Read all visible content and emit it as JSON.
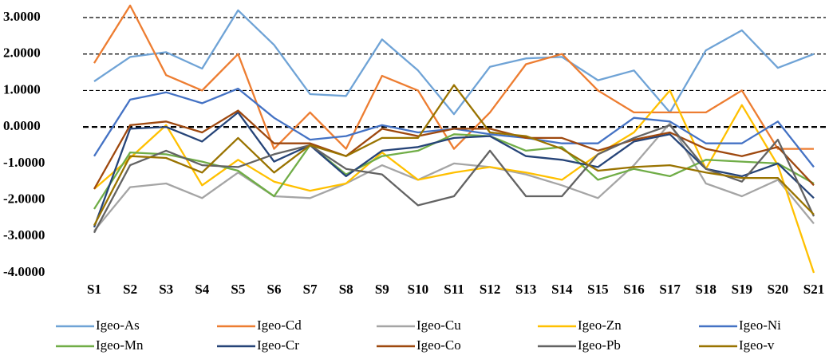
{
  "chart_data": {
    "type": "line",
    "categories": [
      "S1",
      "S2",
      "S3",
      "S4",
      "S5",
      "S6",
      "S7",
      "S8",
      "S9",
      "S10",
      "S11",
      "S12",
      "S13",
      "S14",
      "S15",
      "S16",
      "S17",
      "S18",
      "S19",
      "S20",
      "S21"
    ],
    "ylim": [
      -4,
      3
    ],
    "yticks": [
      {
        "value": -4,
        "label": "-4.0000"
      },
      {
        "value": -3,
        "label": "-3.0000"
      },
      {
        "value": -2,
        "label": "-2.0000"
      },
      {
        "value": -1,
        "label": "-1.0000"
      },
      {
        "value": 0,
        "label": "0.0000"
      },
      {
        "value": 1,
        "label": "1.0000"
      },
      {
        "value": 2,
        "label": "2.0000"
      },
      {
        "value": 3,
        "label": "3.0000"
      }
    ],
    "grid": true,
    "legend": "bottom",
    "series": [
      {
        "name": "Igeo-As",
        "color": "#6fa3d6",
        "values": [
          1.25,
          1.92,
          2.05,
          1.6,
          3.2,
          2.25,
          0.9,
          0.85,
          2.4,
          1.55,
          0.35,
          1.65,
          1.88,
          1.92,
          1.28,
          1.55,
          0.4,
          2.1,
          2.65,
          1.62,
          2.0
        ]
      },
      {
        "name": "Igeo-Cd",
        "color": "#ed7d31",
        "values": [
          1.75,
          3.33,
          1.42,
          1.0,
          2.0,
          -0.6,
          0.4,
          -0.6,
          1.4,
          1.0,
          -0.6,
          0.4,
          1.72,
          2.0,
          1.0,
          0.4,
          0.4,
          0.4,
          1.0,
          -0.6,
          -0.6
        ]
      },
      {
        "name": "Igeo-Cu",
        "color": "#a5a5a5",
        "values": [
          -2.85,
          -1.65,
          -1.55,
          -1.95,
          -1.25,
          -1.9,
          -1.95,
          -1.55,
          -1.05,
          -1.45,
          -1.0,
          -1.1,
          -1.3,
          -1.6,
          -1.95,
          -1.05,
          0.1,
          -1.55,
          -1.9,
          -1.45,
          -2.65
        ]
      },
      {
        "name": "Igeo-Zn",
        "color": "#ffc000",
        "values": [
          -1.7,
          -0.85,
          0.05,
          -1.6,
          -0.9,
          -1.5,
          -1.75,
          -1.55,
          -0.7,
          -1.45,
          -1.25,
          -1.1,
          -1.25,
          -1.45,
          -0.75,
          -0.15,
          1.0,
          -1.15,
          0.6,
          -1.05,
          -4.0
        ]
      },
      {
        "name": "Igeo-Ni",
        "color": "#4472c4",
        "values": [
          -0.8,
          0.75,
          0.95,
          0.65,
          1.05,
          0.25,
          -0.35,
          -0.25,
          0.05,
          -0.15,
          -0.05,
          -0.2,
          -0.3,
          -0.45,
          -0.45,
          0.25,
          0.15,
          -0.45,
          -0.45,
          0.15,
          -1.1
        ]
      },
      {
        "name": "Igeo-Mn",
        "color": "#70ad47",
        "values": [
          -2.25,
          -0.7,
          -0.75,
          -0.95,
          -1.2,
          -1.9,
          -0.5,
          -1.3,
          -0.8,
          -0.65,
          -0.2,
          -0.25,
          -0.65,
          -0.55,
          -1.45,
          -1.15,
          -1.35,
          -0.9,
          -0.95,
          -1.0,
          -1.55
        ]
      },
      {
        "name": "Igeo-Cr",
        "color": "#264478",
        "values": [
          -2.75,
          -0.05,
          0.0,
          -0.4,
          0.4,
          -0.95,
          -0.5,
          -1.35,
          -0.65,
          -0.55,
          -0.3,
          -0.25,
          -0.8,
          -0.9,
          -1.1,
          -0.4,
          -0.2,
          -1.15,
          -1.35,
          -1.0,
          -1.95
        ]
      },
      {
        "name": "Igeo-Co",
        "color": "#9e480e",
        "values": [
          -1.7,
          0.05,
          0.15,
          -0.15,
          0.45,
          -0.45,
          -0.45,
          -0.8,
          -0.05,
          -0.25,
          -0.05,
          -0.05,
          -0.3,
          -0.3,
          -0.65,
          -0.35,
          -0.15,
          -0.6,
          -0.8,
          -0.55,
          -1.6
        ]
      },
      {
        "name": "Igeo-Pb",
        "color": "#636363",
        "values": [
          -2.9,
          -1.05,
          -0.65,
          -1.05,
          -1.1,
          -0.75,
          -0.5,
          -1.15,
          -1.3,
          -2.15,
          -1.9,
          -0.65,
          -1.9,
          -1.9,
          -0.75,
          -0.3,
          0.05,
          -1.15,
          -1.5,
          -0.35,
          -2.45
        ]
      },
      {
        "name": "Igeo-v",
        "color": "#997300",
        "values": [
          -2.7,
          -0.8,
          -0.85,
          -1.25,
          -0.3,
          -1.25,
          -0.5,
          -0.8,
          -0.3,
          -0.3,
          1.15,
          -0.15,
          -0.25,
          -0.6,
          -1.2,
          -1.1,
          -1.05,
          -1.25,
          -1.4,
          -1.4,
          -2.4
        ]
      }
    ]
  }
}
